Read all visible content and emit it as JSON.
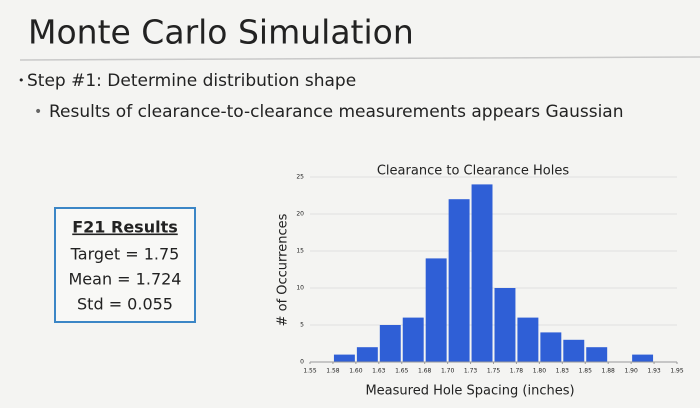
{
  "slide": {
    "title": "Monte Carlo Simulation",
    "bullet": "Step #1: Determine distribution shape",
    "sub_bullet": "Results of clearance-to-clearance measurements appears Gaussian",
    "results_box": {
      "heading": "F21 Results",
      "lines": [
        "Target = 1.75",
        "Mean = 1.724",
        "Std = 0.055"
      ]
    }
  },
  "chart_data": {
    "type": "histogram",
    "title": "Clearance to Clearance Holes",
    "x_label": "Measured Hole Spacing (inches)",
    "y_label": "# of Occurrences",
    "bins": [
      1.55,
      1.575,
      1.6,
      1.625,
      1.65,
      1.675,
      1.7,
      1.725,
      1.75,
      1.775,
      1.8,
      1.825,
      1.85,
      1.875,
      1.9,
      1.925,
      1.95
    ],
    "values": [
      0,
      1,
      2,
      5,
      6,
      14,
      22,
      24,
      10,
      6,
      4,
      3,
      2,
      0,
      1,
      0
    ],
    "color": "#2f5fd6",
    "xlim": [
      1.55,
      1.95
    ],
    "xticks": [
      {
        "value": 1.55,
        "label": "1.55"
      },
      {
        "value": 1.575,
        "label": "1.58"
      },
      {
        "value": 1.6,
        "label": "1.60"
      },
      {
        "value": 1.625,
        "label": "1.63"
      },
      {
        "value": 1.65,
        "label": "1.65"
      },
      {
        "value": 1.675,
        "label": "1.68"
      },
      {
        "value": 1.7,
        "label": "1.70"
      },
      {
        "value": 1.725,
        "label": "1.73"
      },
      {
        "value": 1.75,
        "label": "1.75"
      },
      {
        "value": 1.775,
        "label": "1.78"
      },
      {
        "value": 1.8,
        "label": "1.80"
      },
      {
        "value": 1.825,
        "label": "1.83"
      },
      {
        "value": 1.85,
        "label": "1.85"
      },
      {
        "value": 1.875,
        "label": "1.88"
      },
      {
        "value": 1.9,
        "label": "1.90"
      },
      {
        "value": 1.925,
        "label": "1.93"
      },
      {
        "value": 1.95,
        "label": "1.95"
      }
    ],
    "ylim": [
      0,
      25
    ],
    "yticks": [
      0,
      5,
      10,
      15,
      20,
      25
    ],
    "grid": true
  }
}
